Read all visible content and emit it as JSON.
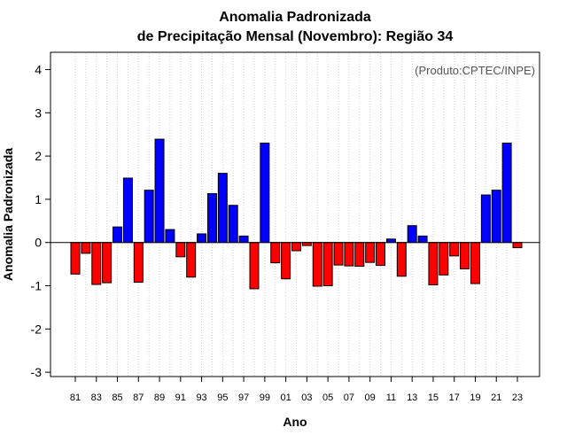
{
  "chart_data": {
    "type": "bar",
    "title_line1": "Anomalia Padronizada",
    "title_line2": "de Precipitação Mensal (Novembro): Região 34",
    "credit": "(Produto:CPTEC/INPE)",
    "xlabel": "Ano",
    "ylabel": "Anomalia Padronizada",
    "ylim": [
      -3.1,
      4.4
    ],
    "yticks": [
      -3,
      -2,
      -1,
      0,
      1,
      2,
      3,
      4
    ],
    "grid": "vertical dotted",
    "colors": {
      "positive": "#0000ff",
      "negative": "#ff0000",
      "bar_border": "#000000",
      "grid": "#d0d0d0"
    },
    "categories": [
      "81",
      "82",
      "83",
      "84",
      "85",
      "86",
      "87",
      "88",
      "89",
      "90",
      "91",
      "92",
      "93",
      "94",
      "95",
      "96",
      "97",
      "98",
      "99",
      "00",
      "01",
      "02",
      "03",
      "04",
      "05",
      "06",
      "07",
      "08",
      "09",
      "10",
      "11",
      "12",
      "13",
      "14",
      "15",
      "16",
      "17",
      "18",
      "19",
      "20",
      "21",
      "22",
      "23"
    ],
    "xtick_labels": [
      "81",
      "83",
      "85",
      "87",
      "89",
      "91",
      "93",
      "95",
      "97",
      "99",
      "01",
      "03",
      "05",
      "07",
      "09",
      "11",
      "13",
      "15",
      "17",
      "19",
      "21",
      "23"
    ],
    "values": [
      -0.73,
      -0.25,
      -0.97,
      -0.93,
      0.36,
      1.49,
      -0.92,
      1.21,
      2.39,
      0.3,
      -0.33,
      -0.8,
      0.2,
      1.13,
      1.6,
      0.86,
      0.15,
      -1.07,
      2.3,
      -0.47,
      -0.84,
      -0.19,
      -0.07,
      -1.01,
      -1.0,
      -0.52,
      -0.54,
      -0.55,
      -0.46,
      -0.53,
      0.08,
      -0.78,
      0.39,
      0.15,
      -0.98,
      -0.75,
      -0.31,
      -0.61,
      -0.95,
      1.1,
      1.21,
      2.3,
      -0.12
    ]
  }
}
